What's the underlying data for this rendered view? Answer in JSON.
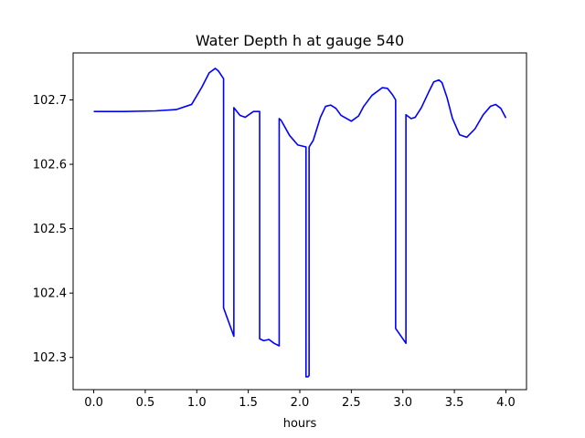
{
  "chart_data": {
    "type": "line",
    "title": "Water Depth h at gauge 540",
    "xlabel": "hours",
    "ylabel": "",
    "xlim": [
      -0.2,
      4.2
    ],
    "ylim": [
      102.25,
      102.773
    ],
    "x_ticks": [
      0.0,
      0.5,
      1.0,
      1.5,
      2.0,
      2.5,
      3.0,
      3.5,
      4.0
    ],
    "x_tick_labels": [
      "0.0",
      "0.5",
      "1.0",
      "1.5",
      "2.0",
      "2.5",
      "3.0",
      "3.5",
      "4.0"
    ],
    "y_ticks": [
      102.3,
      102.4,
      102.5,
      102.6,
      102.7
    ],
    "y_tick_labels": [
      "102.3",
      "102.4",
      "102.5",
      "102.6",
      "102.7"
    ],
    "grid": false,
    "legend": "none",
    "series": [
      {
        "color": "#0000ff",
        "x": [
          0.0,
          0.3,
          0.6,
          0.8,
          0.95,
          1.05,
          1.12,
          1.18,
          1.21,
          1.26,
          1.26,
          1.36,
          1.36,
          1.42,
          1.47,
          1.55,
          1.61,
          1.61,
          1.65,
          1.7,
          1.75,
          1.8,
          1.8,
          1.82,
          1.9,
          1.98,
          2.06,
          2.06,
          2.08,
          2.09,
          2.09,
          2.13,
          2.2,
          2.25,
          2.3,
          2.35,
          2.4,
          2.5,
          2.57,
          2.62,
          2.7,
          2.8,
          2.85,
          2.9,
          2.93,
          2.93,
          3.03,
          3.03,
          3.08,
          3.12,
          3.18,
          3.25,
          3.3,
          3.35,
          3.38,
          3.43,
          3.48,
          3.55,
          3.62,
          3.7,
          3.78,
          3.85,
          3.9,
          3.95,
          4.0
        ],
        "y": [
          102.682,
          102.682,
          102.683,
          102.685,
          102.693,
          102.72,
          102.742,
          102.749,
          102.745,
          102.733,
          102.377,
          102.333,
          102.688,
          102.676,
          102.673,
          102.682,
          102.682,
          102.329,
          102.326,
          102.328,
          102.322,
          102.318,
          102.671,
          102.668,
          102.645,
          102.63,
          102.627,
          102.27,
          102.27,
          102.272,
          102.627,
          102.637,
          102.673,
          102.69,
          102.692,
          102.687,
          102.676,
          102.667,
          102.675,
          102.69,
          102.707,
          102.719,
          102.718,
          102.708,
          102.7,
          102.345,
          102.322,
          102.677,
          102.671,
          102.673,
          102.688,
          102.712,
          102.728,
          102.731,
          102.727,
          102.703,
          102.672,
          102.646,
          102.642,
          102.655,
          102.677,
          102.69,
          102.693,
          102.687,
          102.672
        ]
      }
    ]
  }
}
